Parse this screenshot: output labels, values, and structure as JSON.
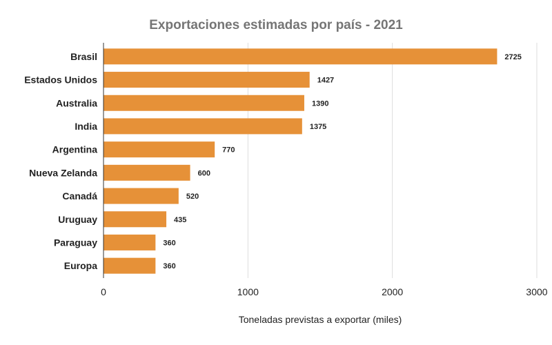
{
  "chart_data": {
    "type": "bar",
    "orientation": "horizontal",
    "title": "Exportaciones estimadas por país - 2021",
    "xlabel": "Toneladas previstas a exportar (miles)",
    "ylabel": "",
    "categories": [
      "Brasil",
      "Estados Unidos",
      "Australia",
      "India",
      "Argentina",
      "Nueva Zelanda",
      "Canadá",
      "Uruguay",
      "Paraguay",
      "Europa"
    ],
    "values": [
      2725,
      1427,
      1390,
      1375,
      770,
      600,
      520,
      435,
      360,
      360
    ],
    "xlim": [
      0,
      3000
    ],
    "xticks": [
      0,
      1000,
      2000,
      3000
    ],
    "grid": true,
    "legend": "none",
    "bar_color": "#E69138",
    "title_color": "#757575"
  }
}
